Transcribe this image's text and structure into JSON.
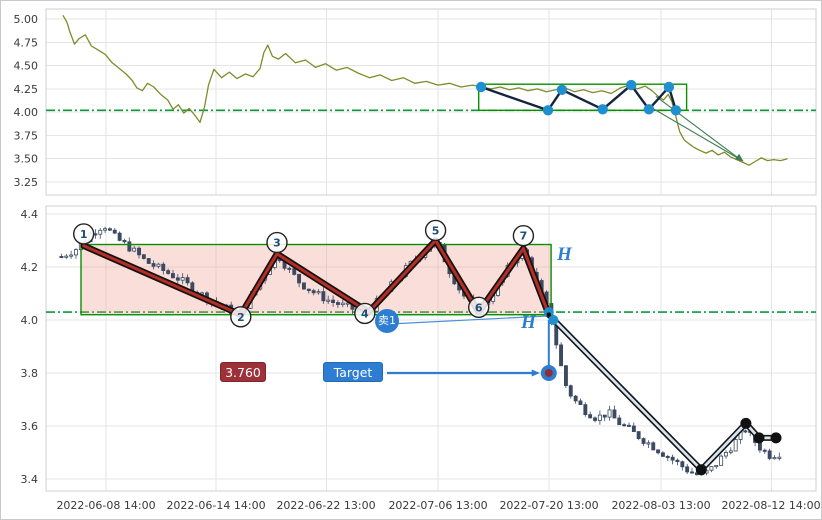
{
  "page": {
    "background": "#ffffff",
    "border_color": "#c9c9c9"
  },
  "x_axis": {
    "labels": [
      "2022-06-08 14:00",
      "2022-06-14 14:00",
      "2022-06-22 13:00",
      "2022-07-06 13:00",
      "2022-07-20 13:00",
      "2022-08-03 13:00",
      "2022-08-12 14:00"
    ],
    "positions_t": [
      7.8,
      22.1,
      36.4,
      50.9,
      65.3,
      79.9,
      94.2
    ],
    "x_unit": "percent of plotted time range (0-100)"
  },
  "chart_data": [
    {
      "type": "line",
      "name": "price-overview",
      "title": "",
      "ylim": [
        3.13,
        5.09
      ],
      "yticks": [
        5.0,
        4.75,
        4.5,
        4.25,
        4.0,
        3.75,
        3.5,
        3.25
      ],
      "ylabels": [
        "5.00",
        "4.75",
        "4.50",
        "4.25",
        "4.00",
        "3.75",
        "3.50",
        "3.25"
      ],
      "grid": true,
      "line_color": "#7e8c2a",
      "points": [
        [
          2.2,
          5.04
        ],
        [
          2.7,
          4.97
        ],
        [
          3.1,
          4.86
        ],
        [
          3.7,
          4.73
        ],
        [
          4.3,
          4.79
        ],
        [
          5.1,
          4.83
        ],
        [
          5.9,
          4.71
        ],
        [
          6.7,
          4.67
        ],
        [
          7.7,
          4.62
        ],
        [
          8.6,
          4.53
        ],
        [
          9.5,
          4.47
        ],
        [
          10.4,
          4.41
        ],
        [
          11.2,
          4.34
        ],
        [
          11.8,
          4.26
        ],
        [
          12.5,
          4.23
        ],
        [
          13.2,
          4.31
        ],
        [
          14.0,
          4.27
        ],
        [
          14.9,
          4.19
        ],
        [
          15.8,
          4.13
        ],
        [
          16.5,
          4.03
        ],
        [
          17.2,
          4.08
        ],
        [
          17.9,
          3.99
        ],
        [
          18.6,
          4.04
        ],
        [
          19.3,
          3.97
        ],
        [
          20.0,
          3.89
        ],
        [
          20.6,
          4.06
        ],
        [
          21.1,
          4.29
        ],
        [
          21.8,
          4.46
        ],
        [
          22.8,
          4.37
        ],
        [
          23.8,
          4.43
        ],
        [
          24.8,
          4.36
        ],
        [
          25.9,
          4.41
        ],
        [
          26.9,
          4.38
        ],
        [
          27.8,
          4.47
        ],
        [
          28.3,
          4.64
        ],
        [
          28.8,
          4.72
        ],
        [
          29.4,
          4.6
        ],
        [
          30.2,
          4.57
        ],
        [
          31.1,
          4.63
        ],
        [
          32.4,
          4.53
        ],
        [
          33.7,
          4.56
        ],
        [
          35.0,
          4.48
        ],
        [
          36.3,
          4.52
        ],
        [
          37.7,
          4.45
        ],
        [
          39.1,
          4.48
        ],
        [
          40.5,
          4.42
        ],
        [
          42.0,
          4.37
        ],
        [
          43.4,
          4.4
        ],
        [
          44.9,
          4.34
        ],
        [
          46.4,
          4.37
        ],
        [
          47.9,
          4.31
        ],
        [
          49.4,
          4.33
        ],
        [
          50.9,
          4.29
        ],
        [
          52.4,
          4.31
        ],
        [
          53.9,
          4.27
        ],
        [
          55.4,
          4.29
        ],
        [
          56.6,
          4.27
        ],
        [
          57.8,
          4.25
        ],
        [
          59.0,
          4.27
        ],
        [
          60.2,
          4.24
        ],
        [
          61.4,
          4.26
        ],
        [
          62.6,
          4.23
        ],
        [
          63.8,
          4.25
        ],
        [
          65.0,
          4.22
        ],
        [
          66.2,
          4.24
        ],
        [
          67.4,
          4.26
        ],
        [
          68.6,
          4.22
        ],
        [
          69.8,
          4.24
        ],
        [
          71.0,
          4.21
        ],
        [
          72.2,
          4.23
        ],
        [
          73.4,
          4.2
        ],
        [
          74.6,
          4.26
        ],
        [
          75.8,
          4.29
        ],
        [
          76.8,
          4.25
        ],
        [
          77.8,
          4.28
        ],
        [
          78.7,
          4.23
        ],
        [
          79.5,
          4.17
        ],
        [
          80.2,
          4.13
        ],
        [
          80.8,
          4.19
        ],
        [
          81.3,
          4.11
        ],
        [
          81.8,
          3.95
        ],
        [
          82.3,
          3.79
        ],
        [
          82.9,
          3.7
        ],
        [
          83.5,
          3.66
        ],
        [
          84.2,
          3.62
        ],
        [
          84.9,
          3.59
        ],
        [
          85.7,
          3.56
        ],
        [
          86.5,
          3.59
        ],
        [
          87.3,
          3.54
        ],
        [
          88.1,
          3.57
        ],
        [
          88.9,
          3.52
        ],
        [
          89.7,
          3.49
        ],
        [
          90.5,
          3.46
        ],
        [
          91.3,
          3.43
        ],
        [
          92.1,
          3.47
        ],
        [
          92.9,
          3.51
        ],
        [
          93.7,
          3.48
        ],
        [
          94.5,
          3.49
        ],
        [
          95.4,
          3.48
        ],
        [
          96.3,
          3.5
        ]
      ],
      "support_line": {
        "value": 4.02,
        "color": "#0a9a3c",
        "style": "dash-dot"
      },
      "range_box": {
        "t1": 56.2,
        "t2": 83.2,
        "v1": 4.02,
        "v2": 4.3,
        "color": "#089000"
      },
      "zigzag": {
        "color": "#16243f",
        "dot_color": "#1f8fd0",
        "points": [
          [
            56.5,
            4.27
          ],
          [
            65.2,
            4.02
          ],
          [
            67.0,
            4.24
          ],
          [
            72.3,
            4.03
          ],
          [
            76.0,
            4.29
          ],
          [
            78.3,
            4.03
          ],
          [
            80.9,
            4.27
          ],
          [
            81.8,
            4.02
          ]
        ]
      },
      "projection_arrow": {
        "lines": [
          [
            [
              79.2,
              4.17
            ],
            [
              90.2,
              3.49
            ]
          ],
          [
            [
              78.6,
              4.05
            ],
            [
              90.2,
              3.49
            ]
          ]
        ],
        "tip": [
          90.6,
          3.47
        ],
        "color": "#3f7d52"
      }
    },
    {
      "type": "candlestick",
      "name": "price-detail",
      "title": "",
      "ylim": [
        3.37,
        4.43
      ],
      "yticks": [
        4.4,
        4.2,
        4.0,
        3.8,
        3.6,
        3.4
      ],
      "ylabels": [
        "4.4",
        "4.2",
        "4.0",
        "3.8",
        "3.6",
        "3.4"
      ],
      "grid": true,
      "candle_color": "#3b4a63",
      "candle_step_t": 0.63,
      "candle_width": 3.1,
      "noise_seed": 7,
      "noise_amp": 0.032,
      "trend_keypoints": [
        [
          2,
          4.24
        ],
        [
          4,
          4.27
        ],
        [
          6,
          4.33
        ],
        [
          7.5,
          4.36
        ],
        [
          9,
          4.31
        ],
        [
          11,
          4.27
        ],
        [
          13,
          4.22
        ],
        [
          15,
          4.19
        ],
        [
          17,
          4.16
        ],
        [
          19,
          4.12
        ],
        [
          21,
          4.08
        ],
        [
          23,
          4.05
        ],
        [
          25,
          4.02
        ],
        [
          26.5,
          4.08
        ],
        [
          28,
          4.16
        ],
        [
          30,
          4.25
        ],
        [
          31.5,
          4.19
        ],
        [
          33,
          4.14
        ],
        [
          35,
          4.1
        ],
        [
          37,
          4.07
        ],
        [
          39,
          4.05
        ],
        [
          41,
          4.03
        ],
        [
          42.5,
          4.05
        ],
        [
          44,
          4.1
        ],
        [
          46,
          4.17
        ],
        [
          48,
          4.23
        ],
        [
          50,
          4.29
        ],
        [
          51,
          4.28
        ],
        [
          52.5,
          4.18
        ],
        [
          54,
          4.1
        ],
        [
          55.5,
          4.05
        ],
        [
          56.5,
          4.04
        ],
        [
          58,
          4.1
        ],
        [
          59.5,
          4.17
        ],
        [
          61,
          4.24
        ],
        [
          62,
          4.26
        ],
        [
          63,
          4.2
        ],
        [
          64,
          4.12
        ],
        [
          65,
          4.05
        ],
        [
          65.8,
          3.98
        ],
        [
          66.6,
          3.86
        ],
        [
          67.4,
          3.76
        ],
        [
          68.5,
          3.7
        ],
        [
          70,
          3.66
        ],
        [
          71.5,
          3.63
        ],
        [
          73,
          3.65
        ],
        [
          74.5,
          3.61
        ],
        [
          76,
          3.58
        ],
        [
          77.5,
          3.55
        ],
        [
          79,
          3.52
        ],
        [
          80.5,
          3.49
        ],
        [
          82,
          3.46
        ],
        [
          83.5,
          3.43
        ],
        [
          85,
          3.41
        ],
        [
          86.5,
          3.44
        ],
        [
          88,
          3.49
        ],
        [
          89.5,
          3.54
        ],
        [
          90.8,
          3.59
        ],
        [
          91.8,
          3.55
        ],
        [
          93,
          3.51
        ],
        [
          94,
          3.49
        ],
        [
          95.5,
          3.5
        ]
      ],
      "support_line": {
        "value": 4.03,
        "color": "#0a9a3c",
        "style": "dash-dot"
      },
      "range_box": {
        "t1": 4.55,
        "t2": 65.6,
        "v1": 4.02,
        "v2": 4.285,
        "border_color": "#089000",
        "fill_color": "rgba(236,146,134,0.30)"
      },
      "zigzag": {
        "outer_color": "#17100e",
        "inner_color": "#b03028",
        "points": [
          [
            4.9,
            4.28
          ],
          [
            25.3,
            4.02
          ],
          [
            30.0,
            4.25
          ],
          [
            41.9,
            4.03
          ],
          [
            50.6,
            4.3
          ],
          [
            56.2,
            4.03
          ],
          [
            62.0,
            4.27
          ],
          [
            65.3,
            4.02
          ]
        ]
      },
      "pivots": [
        {
          "label": "1",
          "t": 4.9,
          "cv": 4.325
        },
        {
          "label": "2",
          "t": 25.3,
          "cv": 4.012
        },
        {
          "label": "3",
          "t": 30.0,
          "cv": 4.292
        },
        {
          "label": "4",
          "t": 41.4,
          "cv": 4.025
        },
        {
          "label": "5",
          "t": 50.6,
          "cv": 4.338
        },
        {
          "label": "6",
          "t": 56.2,
          "cv": 4.048
        },
        {
          "label": "7",
          "t": 62.0,
          "cv": 4.318
        }
      ],
      "signal_line": {
        "from": [
          44.6,
          3.985
        ],
        "to": [
          65.1,
          4.015
        ],
        "color": "#4a90d9"
      },
      "h_pivot_dots": [
        [
          65.3,
          4.03
        ],
        [
          65.9,
          4.0
        ]
      ],
      "measure_line": {
        "t": 65.3,
        "from_v": 4.0,
        "to_v": 3.8,
        "color": "#2d7dd2"
      },
      "target_marker": {
        "t": 65.3,
        "v": 3.8,
        "outer_color": "#2d7dd2",
        "inner_color": "#8c2f39"
      },
      "forecast_line": {
        "points": [
          [
            65.3,
            4.02
          ],
          [
            85.1,
            3.435
          ],
          [
            90.9,
            3.61
          ],
          [
            92.6,
            3.555
          ],
          [
            94.8,
            3.555
          ]
        ],
        "outer_color": "#141414",
        "inner_color": "#d7e5f2",
        "dot_indices": [
          1,
          2,
          3,
          4
        ]
      }
    }
  ],
  "annotations": {
    "price_tag": "3.760",
    "target_label": "Target",
    "sell_badge": "卖1",
    "h_label_top": "H",
    "h_label_bottom": "H",
    "accent_blue": "#2d7dd2",
    "tag_red_bg": "#9e3039"
  }
}
